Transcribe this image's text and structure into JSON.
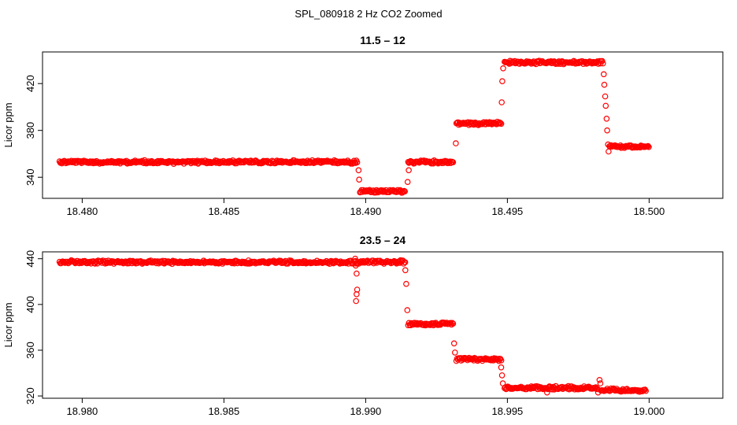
{
  "figure": {
    "title": "SPL_080918  2 Hz CO2 Zoomed"
  },
  "colors": {
    "points": "#ff0000",
    "frame": "#000000"
  },
  "chart_data": [
    {
      "type": "scatter",
      "title": "11.5 – 12",
      "xlabel": "",
      "ylabel": "Licor ppm",
      "xlim": [
        18.4786,
        18.5026
      ],
      "ylim": [
        322,
        447
      ],
      "xticks": [
        18.48,
        18.485,
        18.49,
        18.495,
        18.5
      ],
      "xtick_labels": [
        "18.480",
        "18.485",
        "18.490",
        "18.495",
        "18.500"
      ],
      "yticks": [
        340,
        380,
        420
      ],
      "ytick_labels": [
        "340",
        "380",
        "420"
      ],
      "segments": [
        {
          "x0": 18.4792,
          "x1": 18.4897,
          "y": 353
        },
        {
          "x0": 18.4898,
          "x1": 18.4914,
          "y": 328
        },
        {
          "x0": 18.4915,
          "x1": 18.4931,
          "y": 353
        },
        {
          "x0": 18.4932,
          "x1": 18.4948,
          "y": 386
        },
        {
          "x0": 18.4949,
          "x1": 18.4984,
          "y": 438
        },
        {
          "x0": 18.4986,
          "x1": 18.5,
          "y": 366
        }
      ],
      "transitions": [
        {
          "x": 18.48975,
          "y": 346
        },
        {
          "x": 18.48977,
          "y": 338
        },
        {
          "x": 18.49148,
          "y": 336
        },
        {
          "x": 18.49152,
          "y": 346
        },
        {
          "x": 18.49318,
          "y": 369
        },
        {
          "x": 18.4948,
          "y": 404
        },
        {
          "x": 18.49482,
          "y": 422
        },
        {
          "x": 18.49485,
          "y": 433
        },
        {
          "x": 18.4984,
          "y": 428
        },
        {
          "x": 18.49842,
          "y": 419
        },
        {
          "x": 18.49845,
          "y": 409
        },
        {
          "x": 18.49847,
          "y": 401
        },
        {
          "x": 18.4985,
          "y": 390
        },
        {
          "x": 18.49852,
          "y": 380
        },
        {
          "x": 18.49855,
          "y": 368
        },
        {
          "x": 18.49857,
          "y": 362
        }
      ]
    },
    {
      "type": "scatter",
      "title": "23.5 – 24",
      "xlabel": "",
      "ylabel": "Licor ppm",
      "xlim": [
        18.9786,
        19.0026
      ],
      "ylim": [
        318,
        446
      ],
      "xticks": [
        18.98,
        18.985,
        18.99,
        18.995,
        19.0
      ],
      "xtick_labels": [
        "18.980",
        "18.985",
        "18.990",
        "18.995",
        "19.000"
      ],
      "yticks": [
        320,
        360,
        400,
        440
      ],
      "ytick_labels": [
        "320",
        "360",
        "400",
        "440"
      ],
      "segments": [
        {
          "x0": 18.9792,
          "x1": 18.9914,
          "y": 437
        },
        {
          "x0": 18.9915,
          "x1": 18.9931,
          "y": 383
        },
        {
          "x0": 18.9932,
          "x1": 18.9948,
          "y": 352
        },
        {
          "x0": 18.9949,
          "x1": 18.9982,
          "y": 327
        },
        {
          "x0": 18.9983,
          "x1": 18.9999,
          "y": 325
        }
      ],
      "transitions": [
        {
          "x": 18.98963,
          "y": 440
        },
        {
          "x": 18.98965,
          "y": 434
        },
        {
          "x": 18.98968,
          "y": 427
        },
        {
          "x": 18.9897,
          "y": 413
        },
        {
          "x": 18.98968,
          "y": 409
        },
        {
          "x": 18.98966,
          "y": 403
        },
        {
          "x": 18.9914,
          "y": 430
        },
        {
          "x": 18.99143,
          "y": 418
        },
        {
          "x": 18.99147,
          "y": 395
        },
        {
          "x": 18.99312,
          "y": 366
        },
        {
          "x": 18.99315,
          "y": 358
        },
        {
          "x": 18.99478,
          "y": 345
        },
        {
          "x": 18.99481,
          "y": 338
        },
        {
          "x": 18.99484,
          "y": 331
        },
        {
          "x": 18.99825,
          "y": 334
        },
        {
          "x": 18.99828,
          "y": 331
        },
        {
          "x": 18.9982,
          "y": 323
        },
        {
          "x": 18.9964,
          "y": 323
        }
      ]
    }
  ]
}
